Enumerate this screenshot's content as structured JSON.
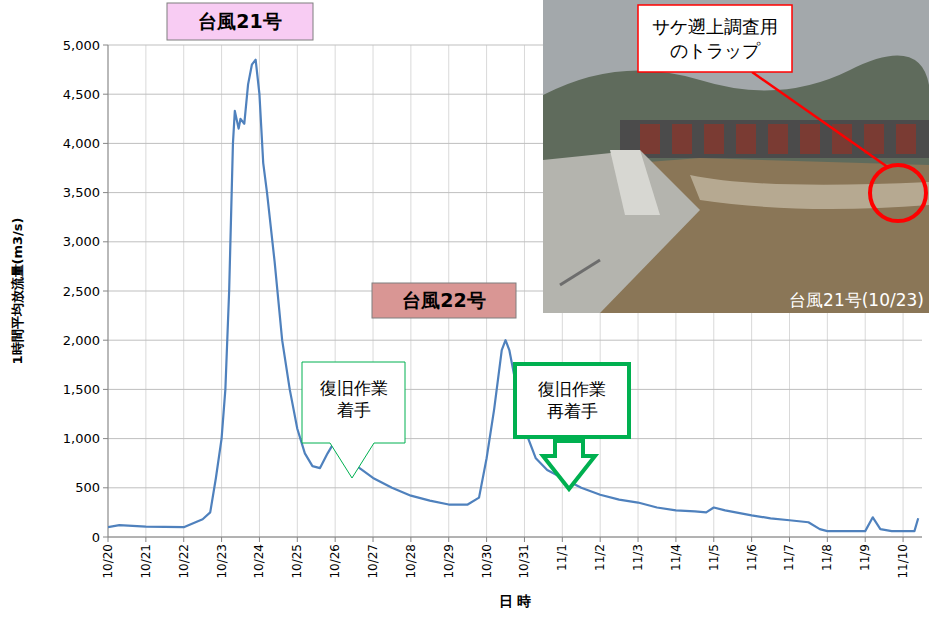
{
  "chart_data": {
    "type": "line",
    "x_label": "日 時",
    "y_label": "1時間平均放流量(m3/s)",
    "color": "#4f81bd",
    "grid": true,
    "xlim": [
      0,
      21.5
    ],
    "xticks": [
      {
        "value": 0,
        "label": "10/20"
      },
      {
        "value": 1,
        "label": "10/21"
      },
      {
        "value": 2,
        "label": "10/22"
      },
      {
        "value": 3,
        "label": "10/23"
      },
      {
        "value": 4,
        "label": "10/24"
      },
      {
        "value": 5,
        "label": "10/25"
      },
      {
        "value": 6,
        "label": "10/26"
      },
      {
        "value": 7,
        "label": "10/27"
      },
      {
        "value": 8,
        "label": "10/28"
      },
      {
        "value": 9,
        "label": "10/29"
      },
      {
        "value": 10,
        "label": "10/30"
      },
      {
        "value": 11,
        "label": "10/31"
      },
      {
        "value": 12,
        "label": "11/1"
      },
      {
        "value": 13,
        "label": "11/2"
      },
      {
        "value": 14,
        "label": "11/3"
      },
      {
        "value": 15,
        "label": "11/4"
      },
      {
        "value": 16,
        "label": "11/5"
      },
      {
        "value": 17,
        "label": "11/6"
      },
      {
        "value": 18,
        "label": "11/7"
      },
      {
        "value": 19,
        "label": "11/8"
      },
      {
        "value": 20,
        "label": "11/9"
      },
      {
        "value": 21,
        "label": "11/10"
      }
    ],
    "ylim": [
      0,
      5000
    ],
    "yticks": [
      0,
      500,
      {
        "value": 1000,
        "label": "1,000"
      },
      {
        "value": 1500,
        "label": "1,500"
      },
      {
        "value": 2000,
        "label": "2,000"
      },
      {
        "value": 2500,
        "label": "2,500"
      },
      {
        "value": 3000,
        "label": "3,000"
      },
      {
        "value": 3500,
        "label": "3,500"
      },
      {
        "value": 4000,
        "label": "4,000"
      },
      {
        "value": 4500,
        "label": "4,500"
      },
      {
        "value": 5000,
        "label": "5,000"
      }
    ],
    "x": [
      0,
      0.3,
      1,
      2,
      2.5,
      2.7,
      2.85,
      3.0,
      3.1,
      3.2,
      3.3,
      3.35,
      3.45,
      3.5,
      3.6,
      3.7,
      3.8,
      3.9,
      4.0,
      4.1,
      4.2,
      4.4,
      4.6,
      4.8,
      5.0,
      5.2,
      5.4,
      5.6,
      5.8,
      6.0,
      6.2,
      6.5,
      7.0,
      7.5,
      8.0,
      8.5,
      9.0,
      9.5,
      9.8,
      10.0,
      10.2,
      10.4,
      10.5,
      10.6,
      10.8,
      11.0,
      11.3,
      11.6,
      12.0,
      12.5,
      13.0,
      13.5,
      14.0,
      14.5,
      15.0,
      15.5,
      15.8,
      16.0,
      16.3,
      17.0,
      17.5,
      18.0,
      18.5,
      18.8,
      19.0,
      20.0,
      20.2,
      20.4,
      20.7,
      21.0,
      21.3,
      21.4
    ],
    "values": [
      100,
      120,
      105,
      100,
      180,
      250,
      600,
      1000,
      1500,
      2500,
      4000,
      4330,
      4150,
      4250,
      4200,
      4600,
      4800,
      4850,
      4500,
      3800,
      3500,
      2800,
      2000,
      1500,
      1100,
      850,
      720,
      700,
      850,
      980,
      900,
      740,
      600,
      500,
      420,
      370,
      330,
      330,
      400,
      800,
      1300,
      1900,
      2000,
      1900,
      1500,
      1100,
      800,
      680,
      600,
      500,
      430,
      380,
      350,
      300,
      270,
      260,
      250,
      300,
      270,
      220,
      190,
      170,
      150,
      80,
      60,
      60,
      200,
      80,
      60,
      60,
      60,
      190
    ],
    "annotations": [
      {
        "text": "台風21号"
      },
      {
        "text": "台風22号"
      },
      {
        "text": "復旧作業着手"
      },
      {
        "text": "復旧作業再着手"
      },
      {
        "text": "サケ遡上調査用のトラップ"
      },
      {
        "text": "台風21号(10/23)"
      }
    ]
  }
}
